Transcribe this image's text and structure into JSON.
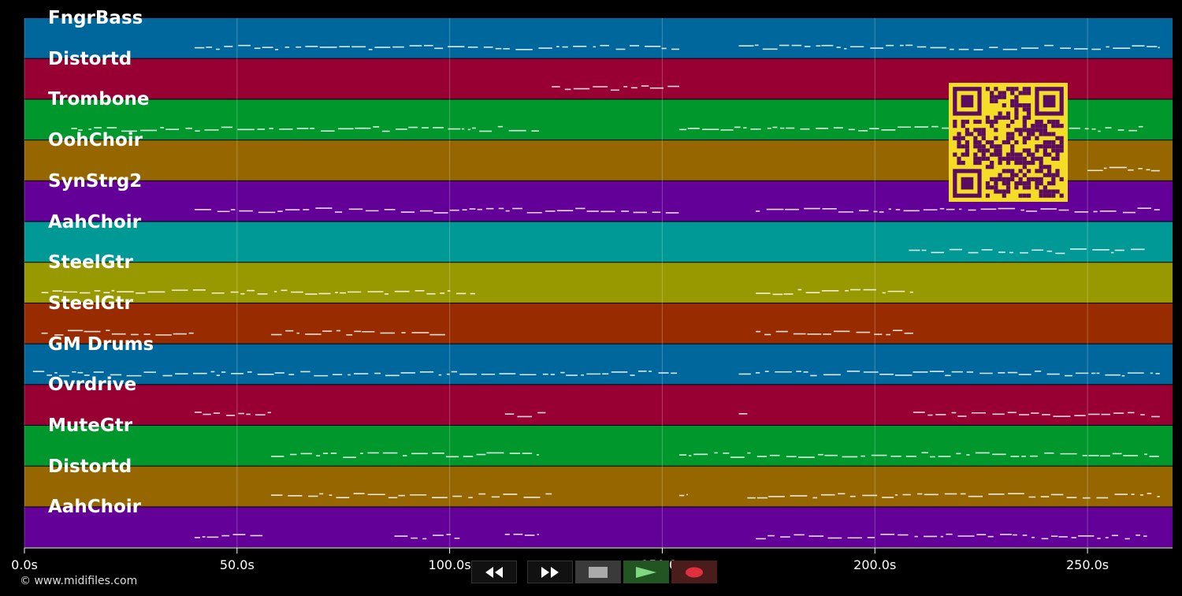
{
  "tracks": [
    {
      "name": "FngrBass",
      "color": "#00679c"
    },
    {
      "name": "Distortd",
      "color": "#980034"
    },
    {
      "name": "Trombone",
      "color": "#00982c"
    },
    {
      "name": "OohChoir",
      "color": "#966700"
    },
    {
      "name": "SynStrg2",
      "color": "#620098"
    },
    {
      "name": "AahChoir",
      "color": "#009995"
    },
    {
      "name": "SteelGtr",
      "color": "#989800"
    },
    {
      "name": "SteelGtr",
      "color": "#982c00"
    },
    {
      "name": "GM Drums",
      "color": "#00679c"
    },
    {
      "name": "Ovrdrive",
      "color": "#980034"
    },
    {
      "name": "MuteGtr",
      "color": "#00982c"
    },
    {
      "name": "Distortd",
      "color": "#966700"
    },
    {
      "name": "AahChoir",
      "color": "#620098"
    }
  ],
  "timeline": {
    "start_s": 0,
    "end_s": 270,
    "ticks": [
      {
        "value": 0,
        "label": "0.0s"
      },
      {
        "value": 50,
        "label": "50.0s"
      },
      {
        "value": 100,
        "label": "100.0s"
      },
      {
        "value": 150,
        "label": "150.0s"
      },
      {
        "value": 200,
        "label": "200.0s"
      },
      {
        "value": 250,
        "label": "250.0s"
      }
    ]
  },
  "copyright": "© www.midifiles.com",
  "transport": {
    "rewind_icon": "rewind-icon",
    "fast_forward_icon": "fast-forward-icon",
    "stop_icon": "stop-icon",
    "play_icon": "play-icon",
    "record_icon": "record-icon",
    "play_color": "#7ed87e",
    "record_color": "#e03040"
  },
  "qr_colors": {
    "fg": "#5a0d5e",
    "bg": "#f5dc26"
  }
}
